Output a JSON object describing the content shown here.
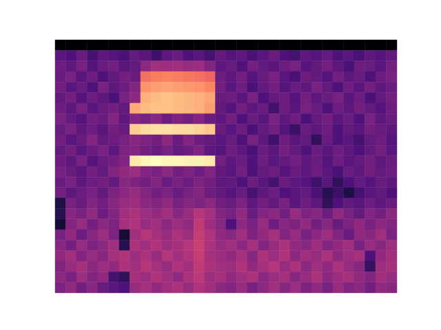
{
  "chart_data": {
    "type": "heatmap",
    "color": "magma",
    "tick_labels": false,
    "xlim": [
      0,
      32
    ],
    "ylim": [
      0,
      24
    ],
    "zlim": [
      -80,
      0
    ],
    "cells": [
      [
        -80,
        -80,
        -80,
        -80,
        -80,
        -80,
        -80,
        -80,
        -80,
        -80,
        -80,
        -80,
        -80,
        -80,
        -80,
        -80,
        -80,
        -80,
        -80,
        -80,
        -80,
        -80,
        -80,
        -80,
        -80,
        -80,
        -80,
        -80,
        -80,
        -80,
        -80,
        -80
      ],
      [
        -58,
        -60,
        -55,
        -62,
        -57,
        -59,
        -61,
        -56,
        -58,
        -63,
        -57,
        -55,
        -60,
        -58,
        -62,
        -56,
        -59,
        -57,
        -61,
        -58,
        -55,
        -60,
        -62,
        -57,
        -59,
        -56,
        -60,
        -58,
        -61,
        -57,
        -59,
        -56
      ],
      [
        -54,
        -57,
        -52,
        -59,
        -55,
        -53,
        -58,
        -56,
        -48,
        -44,
        -45,
        -44,
        -46,
        -45,
        -50,
        -57,
        -55,
        -60,
        -53,
        -56,
        -58,
        -54,
        -52,
        -59,
        -56,
        -53,
        -57,
        -61,
        -54,
        -55,
        -58,
        -53
      ],
      [
        -55,
        -52,
        -58,
        -54,
        -60,
        -56,
        -53,
        -55,
        -24,
        -22,
        -21,
        -22,
        -23,
        -24,
        -26,
        -54,
        -57,
        -53,
        -59,
        -55,
        -52,
        -58,
        -61,
        -54,
        -56,
        -59,
        -53,
        -57,
        -55,
        -60,
        -54,
        -52
      ],
      [
        -53,
        -58,
        -55,
        -60,
        -52,
        -57,
        -54,
        -50,
        -18,
        -16,
        -15,
        -16,
        -17,
        -18,
        -20,
        -53,
        -58,
        -54,
        -61,
        -56,
        -53,
        -59,
        -55,
        -57,
        -52,
        -56,
        -60,
        -54,
        -58,
        -53,
        -57,
        -55
      ],
      [
        -56,
        -53,
        -59,
        -54,
        -57,
        -61,
        -52,
        -48,
        -13,
        -11,
        -10,
        -11,
        -12,
        -13,
        -15,
        -55,
        -54,
        -58,
        -52,
        -60,
        -56,
        -54,
        -59,
        -53,
        -57,
        -55,
        -52,
        -58,
        -54,
        -61,
        -56,
        -53
      ],
      [
        -54,
        -57,
        -52,
        -58,
        -55,
        -53,
        -56,
        -14,
        -11,
        -10,
        -10,
        -11,
        -12,
        -13,
        -16,
        -56,
        -59,
        -53,
        -57,
        -55,
        -62,
        -54,
        -58,
        -52,
        -55,
        -60,
        -54,
        -57,
        -53,
        -56,
        -59,
        -54
      ],
      [
        -52,
        -56,
        -59,
        -53,
        -55,
        -50,
        -57,
        -50,
        -52,
        -49,
        -54,
        -51,
        -53,
        -50,
        -55,
        -57,
        -53,
        -60,
        -55,
        -58,
        -52,
        -57,
        -54,
        -61,
        -56,
        -53,
        -58,
        -55,
        -60,
        -52,
        -57,
        -55
      ],
      [
        -55,
        -52,
        -57,
        -54,
        -58,
        -53,
        -55,
        -8,
        -6,
        -5,
        -5,
        -6,
        -6,
        -7,
        -9,
        -55,
        -58,
        -54,
        -61,
        -56,
        -53,
        -59,
        -64,
        -55,
        -57,
        -54,
        -60,
        -56,
        -58,
        -53,
        -55,
        -57
      ],
      [
        -53,
        -58,
        -55,
        -50,
        -56,
        -54,
        -52,
        -49,
        -51,
        -53,
        -48,
        -55,
        -50,
        -54,
        -56,
        -58,
        -55,
        -60,
        -52,
        -57,
        -63,
        -54,
        -58,
        -56,
        -66,
        -55,
        -60,
        -58,
        -62,
        -56,
        -54,
        -59
      ],
      [
        -56,
        -53,
        -58,
        -55,
        -52,
        -57,
        -51,
        -50,
        -53,
        -55,
        -52,
        -56,
        -54,
        -51,
        -57,
        -59,
        -54,
        -57,
        -61,
        -55,
        -58,
        -53,
        -56,
        -60,
        -55,
        -58,
        -54,
        -57,
        -60,
        -56,
        -53,
        -58
      ],
      [
        -54,
        -57,
        -52,
        -59,
        -55,
        -53,
        -50,
        -3,
        -1,
        0,
        -1,
        -1,
        -2,
        -2,
        -3,
        -53,
        -57,
        -55,
        -60,
        -54,
        -58,
        -56,
        -53,
        -57,
        -55,
        -59,
        -54,
        -58,
        -56,
        -53,
        -57,
        -55
      ],
      [
        -52,
        -55,
        -58,
        -53,
        -56,
        -50,
        -47,
        -45,
        -50,
        -52,
        -48,
        -53,
        -51,
        -54,
        -50,
        -56,
        -58,
        -53,
        -60,
        -56,
        -54,
        -59,
        -55,
        -57,
        -54,
        -58,
        -61,
        -55,
        -57,
        -53,
        -56,
        -54
      ],
      [
        -55,
        -52,
        -57,
        -54,
        -53,
        -56,
        -49,
        -51,
        -53,
        -50,
        -55,
        -52,
        -54,
        -51,
        -53,
        -57,
        -56,
        -60,
        -54,
        -58,
        -62,
        -55,
        -57,
        -59,
        -63,
        -58,
        -66,
        -60,
        -56,
        -59,
        -55,
        -57
      ],
      [
        -53,
        -57,
        -54,
        -52,
        -56,
        -51,
        -48,
        -46,
        -50,
        -53,
        -51,
        -55,
        -52,
        -50,
        -54,
        -56,
        -59,
        -55,
        -62,
        -57,
        -54,
        -60,
        -58,
        -56,
        -61,
        -68,
        -64,
        -70,
        -62,
        -58,
        -56,
        -60
      ],
      [
        -70,
        -52,
        -55,
        -50,
        -53,
        -49,
        -46,
        -45,
        -48,
        -50,
        -47,
        -52,
        -49,
        -51,
        -48,
        -53,
        -55,
        -51,
        -57,
        -53,
        -56,
        -52,
        -58,
        -54,
        -57,
        -66,
        -60,
        -56,
        -58,
        -54,
        -57,
        -55
      ],
      [
        -68,
        -49,
        -52,
        -47,
        -54,
        -50,
        -44,
        -42,
        -45,
        -47,
        -44,
        -49,
        -46,
        -40,
        -43,
        -50,
        -52,
        -47,
        -55,
        -50,
        -48,
        -53,
        -46,
        -51,
        -49,
        -54,
        -47,
        -52,
        -56,
        -50,
        -53,
        -48
      ],
      [
        -72,
        -50,
        -46,
        -53,
        -48,
        -51,
        -43,
        -41,
        -46,
        -44,
        -48,
        -45,
        -47,
        -38,
        -45,
        -49,
        -60,
        -48,
        -52,
        -46,
        -54,
        -49,
        -51,
        -47,
        -53,
        -49,
        -55,
        -51,
        -47,
        -52,
        -48,
        -50
      ],
      [
        -52,
        -47,
        -54,
        -49,
        -45,
        -51,
        -72,
        -44,
        -40,
        -43,
        -46,
        -42,
        -45,
        -37,
        -41,
        -47,
        -49,
        -44,
        -51,
        -47,
        -43,
        -50,
        -46,
        -52,
        -48,
        -45,
        -50,
        -55,
        -47,
        -49,
        -44,
        -51
      ],
      [
        -49,
        -53,
        -46,
        -51,
        -48,
        -44,
        -68,
        -42,
        -44,
        -41,
        -45,
        -43,
        -40,
        -36,
        -42,
        -46,
        -44,
        -48,
        -43,
        -50,
        -46,
        -42,
        -47,
        -49,
        -45,
        -50,
        -47,
        -44,
        -52,
        -46,
        -49,
        -45
      ],
      [
        -47,
        -44,
        -50,
        -46,
        -49,
        -43,
        -41,
        -45,
        -42,
        -46,
        -40,
        -44,
        -41,
        -37,
        -43,
        -45,
        -47,
        -43,
        -49,
        -42,
        -45,
        -41,
        -48,
        -44,
        -46,
        -42,
        -48,
        -45,
        -43,
        -60,
        -47,
        -44
      ],
      [
        -50,
        -46,
        -43,
        -48,
        -45,
        -47,
        -42,
        -44,
        -40,
        -43,
        -46,
        -41,
        -44,
        -38,
        -42,
        -44,
        -45,
        -41,
        -47,
        -43,
        -40,
        -46,
        -42,
        -48,
        -44,
        -47,
        -42,
        -46,
        -49,
        -65,
        -45,
        -43
      ],
      [
        -48,
        -52,
        -45,
        -50,
        -47,
        -62,
        -66,
        -43,
        -45,
        -41,
        -44,
        -47,
        -42,
        -39,
        -45,
        -43,
        -47,
        -44,
        -42,
        -48,
        -45,
        -43,
        -49,
        -46,
        -42,
        -48,
        -45,
        -43,
        -47,
        -50,
        -44,
        -46
      ],
      [
        -51,
        -47,
        -53,
        -49,
        -55,
        -58,
        -60,
        -46,
        -43,
        -47,
        -44,
        -42,
        -46,
        -41,
        -44,
        -48,
        -50,
        -46,
        -52,
        -48,
        -44,
        -49,
        -45,
        -51,
        -47,
        -52,
        -46,
        -50,
        -48,
        -53,
        -47,
        -49
      ]
    ]
  }
}
